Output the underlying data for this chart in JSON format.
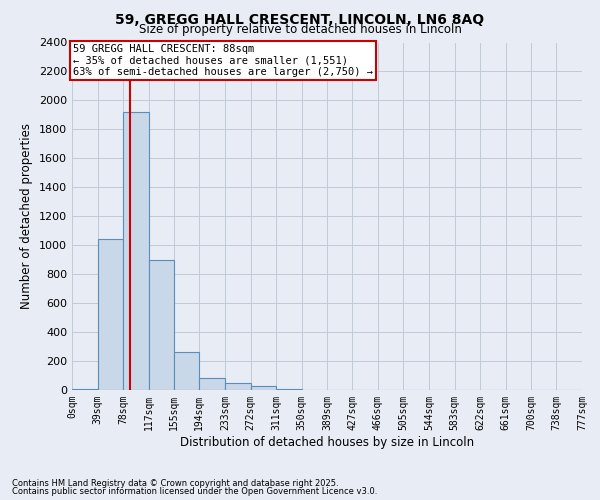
{
  "title_line1": "59, GREGG HALL CRESCENT, LINCOLN, LN6 8AQ",
  "title_line2": "Size of property relative to detached houses in Lincoln",
  "xlabel": "Distribution of detached houses by size in Lincoln",
  "ylabel": "Number of detached properties",
  "bin_labels": [
    "0sqm",
    "39sqm",
    "78sqm",
    "117sqm",
    "155sqm",
    "194sqm",
    "233sqm",
    "272sqm",
    "311sqm",
    "350sqm",
    "389sqm",
    "427sqm",
    "466sqm",
    "505sqm",
    "544sqm",
    "583sqm",
    "622sqm",
    "661sqm",
    "700sqm",
    "738sqm",
    "777sqm"
  ],
  "bin_edges": [
    0,
    39,
    78,
    117,
    155,
    194,
    233,
    272,
    311,
    350,
    389,
    427,
    466,
    505,
    544,
    583,
    622,
    661,
    700,
    738,
    777
  ],
  "bar_heights": [
    5,
    1040,
    1920,
    900,
    260,
    80,
    45,
    30,
    5,
    0,
    0,
    0,
    0,
    0,
    0,
    0,
    0,
    0,
    0,
    0
  ],
  "bar_color": "#c8d8e8",
  "bar_edge_color": "#5b8db8",
  "property_size": 88,
  "property_line_color": "#cc0000",
  "ylim": [
    0,
    2400
  ],
  "yticks": [
    0,
    200,
    400,
    600,
    800,
    1000,
    1200,
    1400,
    1600,
    1800,
    2000,
    2200,
    2400
  ],
  "grid_color": "#c0cad8",
  "bg_color": "#e8ecf4",
  "annotation_text": "59 GREGG HALL CRESCENT: 88sqm\n← 35% of detached houses are smaller (1,551)\n63% of semi-detached houses are larger (2,750) →",
  "annotation_box_color": "#ffffff",
  "annotation_border_color": "#cc0000",
  "footer_line1": "Contains HM Land Registry data © Crown copyright and database right 2025.",
  "footer_line2": "Contains public sector information licensed under the Open Government Licence v3.0."
}
